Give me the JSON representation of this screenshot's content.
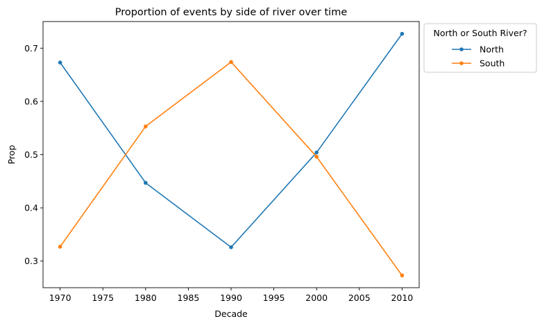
{
  "chart_data": {
    "type": "line",
    "title": "Proportion of events by side of river over time",
    "xlabel": "Decade",
    "ylabel": "Prop",
    "x": [
      1970,
      1980,
      1990,
      2000,
      2010
    ],
    "xlim": [
      1968,
      2012
    ],
    "ylim": [
      0.25,
      0.75
    ],
    "xticks": [
      1970,
      1975,
      1980,
      1985,
      1990,
      1995,
      2000,
      2005,
      2010
    ],
    "yticks": [
      0.3,
      0.4,
      0.5,
      0.6,
      0.7
    ],
    "grid": false,
    "legend": {
      "title": "North or South River?",
      "placement": "outside-top-right"
    },
    "series": [
      {
        "name": "North",
        "color": "#1f77b4",
        "marker": "dot",
        "values": [
          0.673,
          0.447,
          0.326,
          0.504,
          0.727
        ]
      },
      {
        "name": "South",
        "color": "#ff7f0e",
        "marker": "dot",
        "values": [
          0.327,
          0.553,
          0.674,
          0.496,
          0.273
        ]
      }
    ]
  }
}
